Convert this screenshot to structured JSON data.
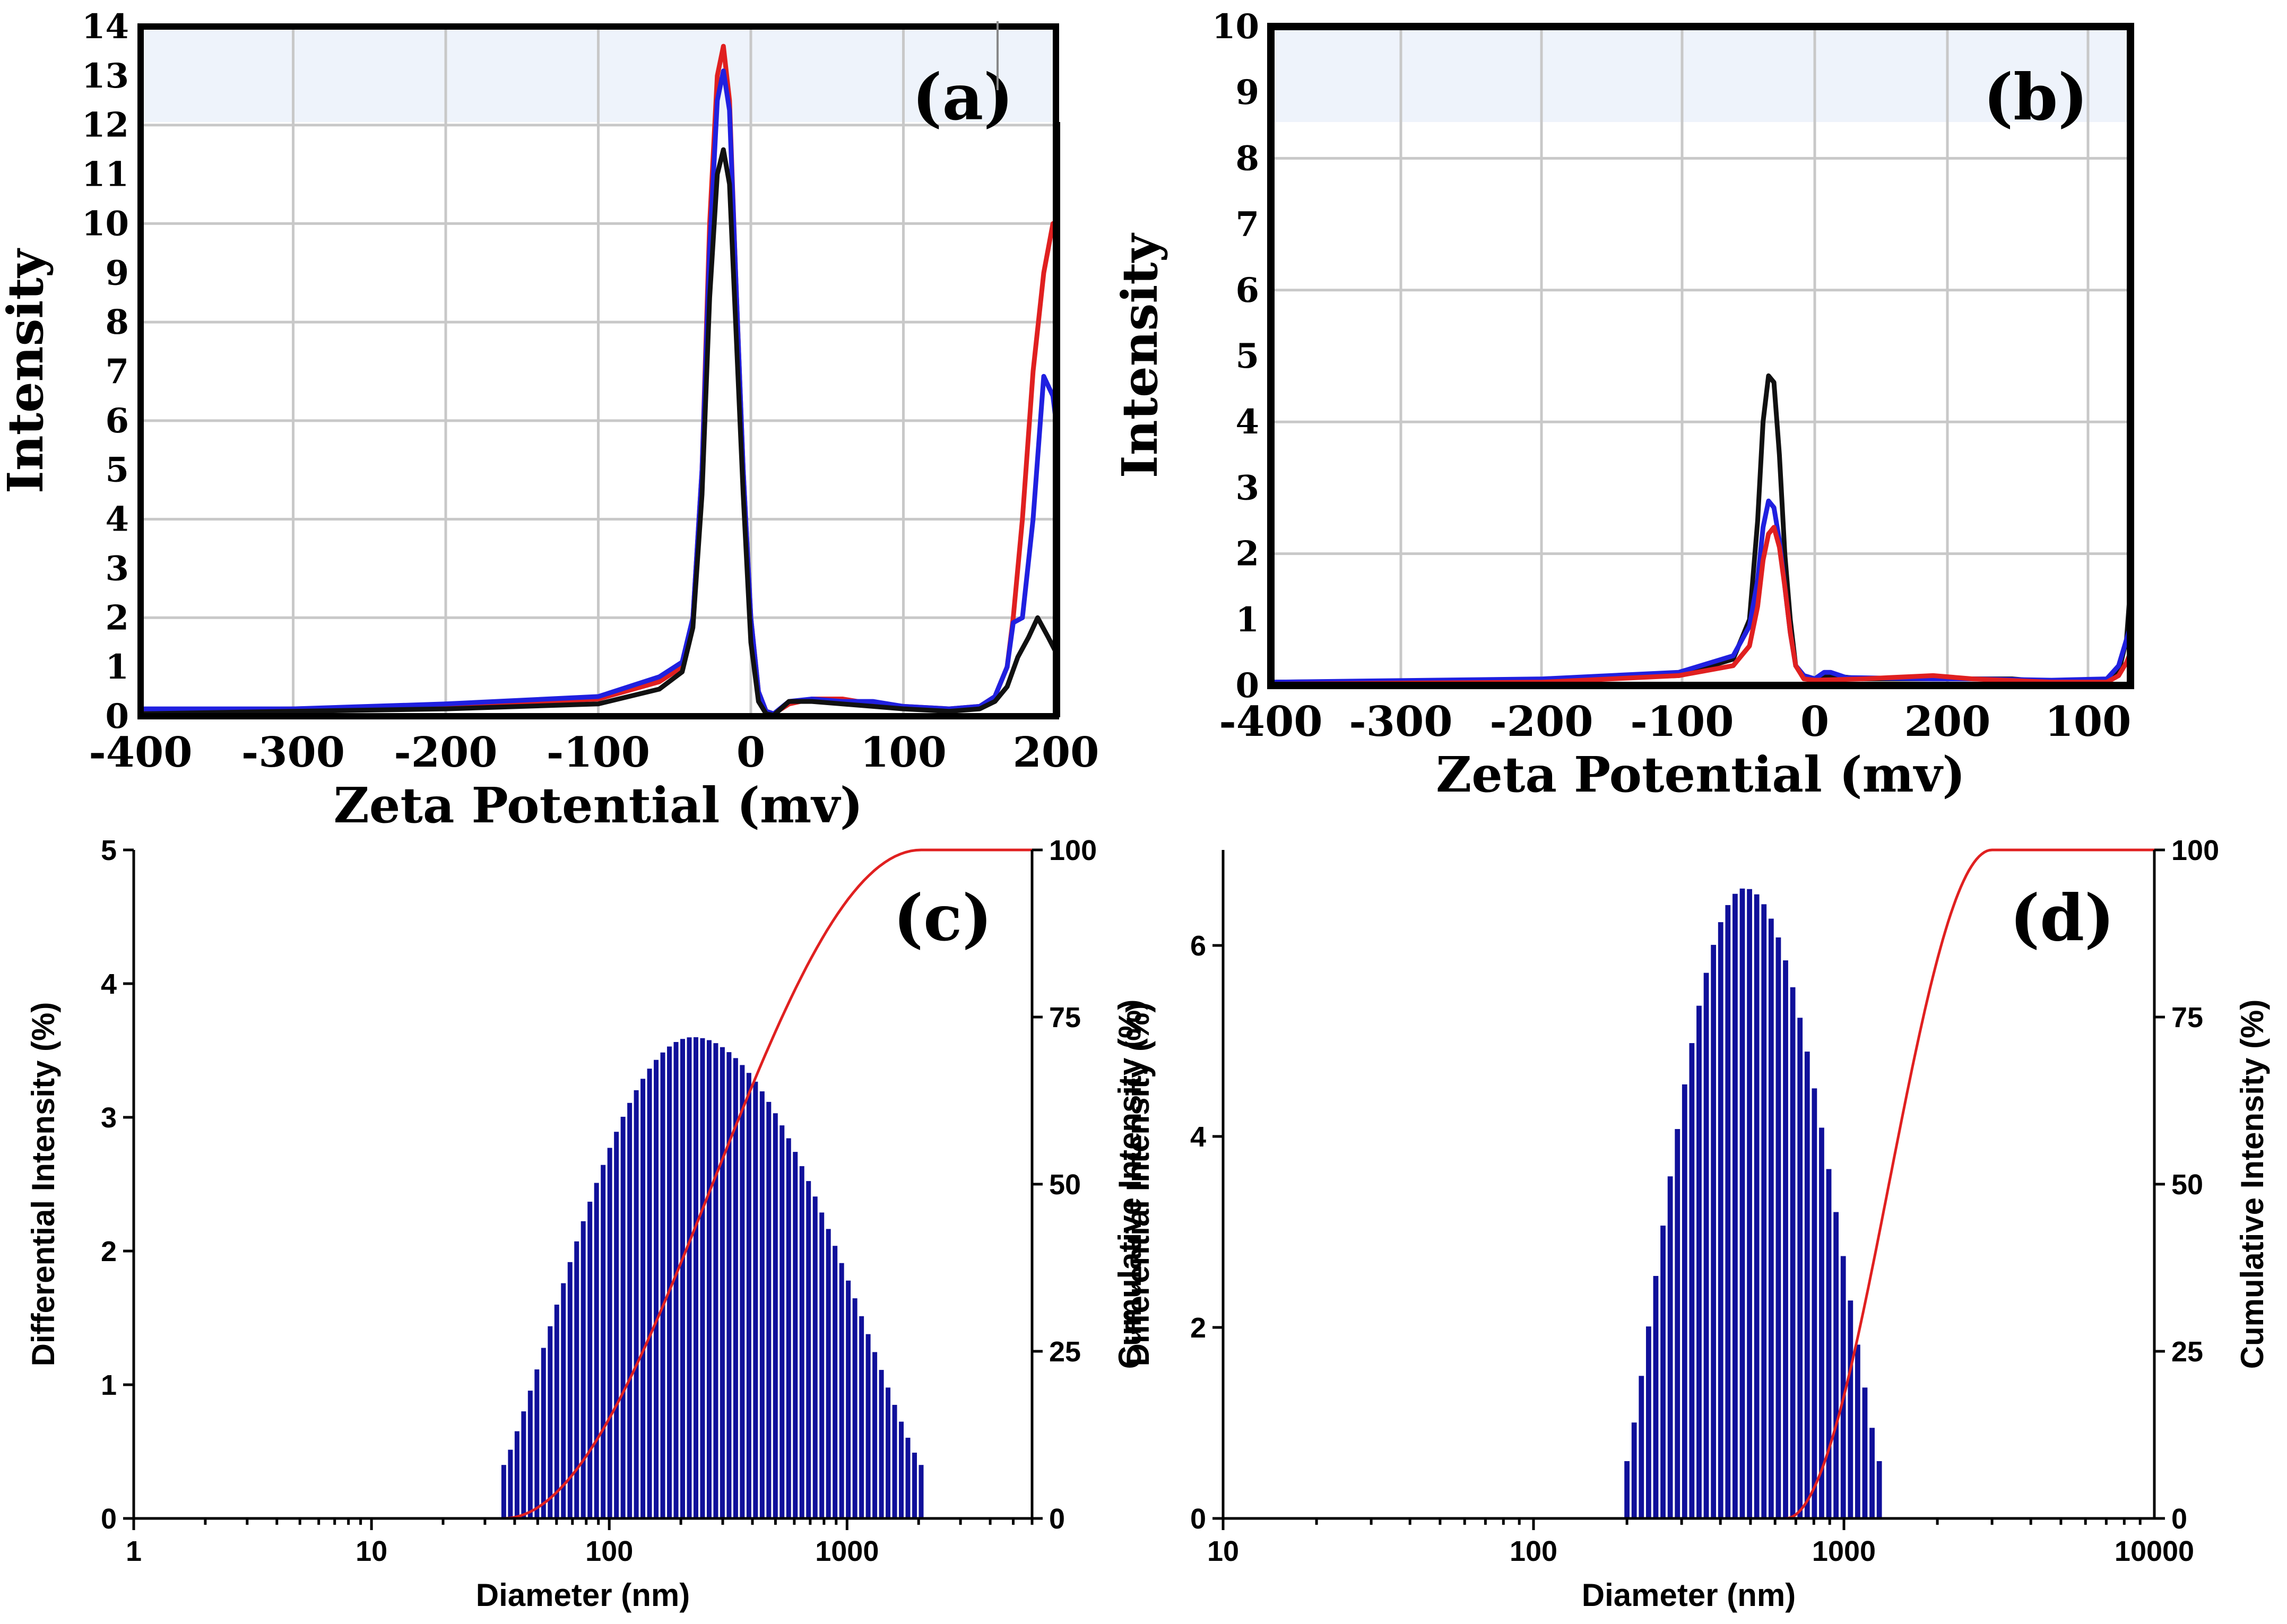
{
  "chart_data": [
    {
      "id": "a",
      "type": "line",
      "panel_label": "(a)",
      "xlabel": "Zeta Potential (mv)",
      "ylabel": "Intensity",
      "xlim": [
        -400,
        200
      ],
      "ylim": [
        0,
        14
      ],
      "x_tick_labels": [
        "-400",
        "-300",
        "-200",
        "-100",
        "0",
        "100",
        "200"
      ],
      "y_tick_labels": [
        "0",
        "1",
        "2",
        "3",
        "4",
        "5",
        "6",
        "7",
        "8",
        "9",
        "10",
        "11",
        "12",
        "13",
        "14"
      ],
      "grid": true,
      "series": [
        {
          "color": "#e02020",
          "points": [
            [
              -400,
              0.1
            ],
            [
              -300,
              0.15
            ],
            [
              -200,
              0.2
            ],
            [
              -100,
              0.35
            ],
            [
              -60,
              0.7
            ],
            [
              -45,
              1.0
            ],
            [
              -38,
              2.0
            ],
            [
              -32,
              5.0
            ],
            [
              -27,
              10.0
            ],
            [
              -22,
              13.0
            ],
            [
              -18,
              13.6
            ],
            [
              -14,
              12.5
            ],
            [
              -10,
              9.0
            ],
            [
              -5,
              5.0
            ],
            [
              0,
              2.0
            ],
            [
              5,
              0.5
            ],
            [
              10,
              0.1
            ],
            [
              15,
              0.05
            ],
            [
              25,
              0.25
            ],
            [
              40,
              0.35
            ],
            [
              60,
              0.35
            ],
            [
              80,
              0.25
            ],
            [
              100,
              0.2
            ],
            [
              130,
              0.15
            ],
            [
              150,
              0.2
            ],
            [
              160,
              0.4
            ],
            [
              168,
              1.0
            ],
            [
              172,
              2.0
            ],
            [
              178,
              4.0
            ],
            [
              185,
              7.0
            ],
            [
              192,
              9.0
            ],
            [
              198,
              10.0
            ],
            [
              200,
              9.8
            ]
          ]
        },
        {
          "color": "#2020e0",
          "points": [
            [
              -400,
              0.15
            ],
            [
              -300,
              0.15
            ],
            [
              -200,
              0.25
            ],
            [
              -100,
              0.4
            ],
            [
              -60,
              0.8
            ],
            [
              -45,
              1.1
            ],
            [
              -38,
              2.0
            ],
            [
              -32,
              5.0
            ],
            [
              -27,
              9.5
            ],
            [
              -22,
              12.5
            ],
            [
              -18,
              13.1
            ],
            [
              -14,
              12.3
            ],
            [
              -10,
              9.0
            ],
            [
              -5,
              5.0
            ],
            [
              0,
              2.0
            ],
            [
              5,
              0.5
            ],
            [
              10,
              0.1
            ],
            [
              15,
              0.05
            ],
            [
              25,
              0.3
            ],
            [
              40,
              0.35
            ],
            [
              60,
              0.3
            ],
            [
              80,
              0.3
            ],
            [
              100,
              0.2
            ],
            [
              130,
              0.15
            ],
            [
              150,
              0.2
            ],
            [
              160,
              0.4
            ],
            [
              168,
              1.0
            ],
            [
              172,
              1.9
            ],
            [
              178,
              2.0
            ],
            [
              185,
              4.0
            ],
            [
              192,
              6.9
            ],
            [
              198,
              6.5
            ],
            [
              200,
              6.0
            ]
          ]
        },
        {
          "color": "#111111",
          "points": [
            [
              -400,
              0.05
            ],
            [
              -300,
              0.1
            ],
            [
              -200,
              0.15
            ],
            [
              -100,
              0.25
            ],
            [
              -60,
              0.55
            ],
            [
              -45,
              0.9
            ],
            [
              -38,
              1.8
            ],
            [
              -32,
              4.5
            ],
            [
              -27,
              8.5
            ],
            [
              -22,
              11.0
            ],
            [
              -18,
              11.5
            ],
            [
              -14,
              10.8
            ],
            [
              -10,
              8.0
            ],
            [
              -5,
              4.5
            ],
            [
              0,
              1.5
            ],
            [
              5,
              0.3
            ],
            [
              10,
              0.05
            ],
            [
              15,
              0.02
            ],
            [
              25,
              0.3
            ],
            [
              40,
              0.3
            ],
            [
              60,
              0.25
            ],
            [
              80,
              0.2
            ],
            [
              100,
              0.15
            ],
            [
              130,
              0.1
            ],
            [
              150,
              0.15
            ],
            [
              160,
              0.3
            ],
            [
              168,
              0.6
            ],
            [
              175,
              1.2
            ],
            [
              182,
              1.6
            ],
            [
              188,
              2.0
            ],
            [
              195,
              1.6
            ],
            [
              200,
              1.3
            ]
          ]
        }
      ]
    },
    {
      "id": "b",
      "type": "line",
      "panel_label": "(b)",
      "xlabel": "Zeta Potential (mv)",
      "ylabel": "Intensity",
      "ylim": [
        0,
        10
      ],
      "x_tick_labels": [
        "-400",
        "-300",
        "-200",
        "-100",
        "0",
        "200",
        "100"
      ],
      "y_tick_labels": [
        "0",
        "1",
        "2",
        "3",
        "4",
        "5",
        "6",
        "7",
        "8",
        "9",
        "10"
      ],
      "grid": true,
      "series": [
        {
          "color": "#111111",
          "points": [
            [
              -400,
              0.05
            ],
            [
              -200,
              0.08
            ],
            [
              -100,
              0.15
            ],
            [
              -60,
              0.4
            ],
            [
              -48,
              1.0
            ],
            [
              -42,
              2.5
            ],
            [
              -38,
              4.0
            ],
            [
              -34,
              4.7
            ],
            [
              -30,
              4.6
            ],
            [
              -26,
              3.5
            ],
            [
              -22,
              2.0
            ],
            [
              -18,
              1.0
            ],
            [
              -14,
              0.3
            ],
            [
              -8,
              0.15
            ],
            [
              0,
              0.1
            ],
            [
              20,
              0.15
            ],
            [
              60,
              0.1
            ],
            [
              150,
              0.1
            ],
            [
              200,
              0.1
            ],
            [
              250,
              0.1
            ],
            [
              300,
              0.05
            ],
            [
              370,
              0.08
            ],
            [
              385,
              0.2
            ],
            [
              395,
              0.7
            ],
            [
              400,
              1.5
            ]
          ]
        },
        {
          "color": "#2020e0",
          "points": [
            [
              -400,
              0.05
            ],
            [
              -200,
              0.1
            ],
            [
              -100,
              0.2
            ],
            [
              -60,
              0.45
            ],
            [
              -48,
              0.9
            ],
            [
              -42,
              1.6
            ],
            [
              -38,
              2.4
            ],
            [
              -34,
              2.8
            ],
            [
              -30,
              2.7
            ],
            [
              -26,
              2.2
            ],
            [
              -22,
              1.5
            ],
            [
              -18,
              0.8
            ],
            [
              -14,
              0.3
            ],
            [
              -8,
              0.15
            ],
            [
              0,
              0.1
            ],
            [
              12,
              0.2
            ],
            [
              20,
              0.2
            ],
            [
              40,
              0.12
            ],
            [
              150,
              0.1
            ],
            [
              200,
              0.1
            ],
            [
              300,
              0.08
            ],
            [
              370,
              0.1
            ],
            [
              385,
              0.3
            ],
            [
              395,
              0.7
            ],
            [
              400,
              0.9
            ]
          ]
        },
        {
          "color": "#e02020",
          "points": [
            [
              -400,
              0.02
            ],
            [
              -200,
              0.05
            ],
            [
              -100,
              0.15
            ],
            [
              -60,
              0.3
            ],
            [
              -48,
              0.6
            ],
            [
              -42,
              1.2
            ],
            [
              -38,
              1.9
            ],
            [
              -34,
              2.3
            ],
            [
              -30,
              2.4
            ],
            [
              -26,
              2.1
            ],
            [
              -22,
              1.5
            ],
            [
              -18,
              0.8
            ],
            [
              -14,
              0.3
            ],
            [
              -8,
              0.1
            ],
            [
              0,
              0.08
            ],
            [
              60,
              0.1
            ],
            [
              150,
              0.15
            ],
            [
              200,
              0.1
            ],
            [
              300,
              0.05
            ],
            [
              370,
              0.05
            ],
            [
              385,
              0.15
            ],
            [
              395,
              0.35
            ],
            [
              400,
              0.5
            ]
          ]
        }
      ]
    },
    {
      "id": "c",
      "type": "bar",
      "panel_label": "(c)",
      "xlabel": "Diameter (nm)",
      "ylabel": "Differential Intensity (%)",
      "y2label": "Cumulative Intensity (%)",
      "x_scale": "log",
      "xlim": [
        1,
        6000
      ],
      "ylim": [
        0,
        5
      ],
      "y2lim": [
        0,
        100
      ],
      "x_tick_labels": [
        "1",
        "10",
        "100",
        "1000"
      ],
      "y_tick_labels": [
        "0",
        "1",
        "2",
        "3",
        "4",
        "5"
      ],
      "y2_tick_labels": [
        "0",
        "25",
        "50",
        "75",
        "100"
      ],
      "bar_color": "#10109a",
      "curve_color": "#e02020",
      "bars": {
        "start_nm": 36,
        "end_nm": 2050,
        "peak_nm": 225,
        "peak_value": 3.6,
        "edge_left": 0.4,
        "edge_right": 0.4
      },
      "cumulative": {
        "start_nm": 36,
        "end_nm": 2050
      }
    },
    {
      "id": "d",
      "type": "bar",
      "panel_label": "(d)",
      "xlabel": "Diameter (nm)",
      "ylabel": "Differential Intensity (%)",
      "y2label": "Cumulative Intensity (%)",
      "x_scale": "log",
      "xlim": [
        10,
        10000
      ],
      "ylim": [
        0,
        7
      ],
      "y2lim": [
        0,
        100
      ],
      "x_tick_labels": [
        "10",
        "100",
        "1000",
        "10000"
      ],
      "y_tick_labels": [
        "0",
        "2",
        "4",
        "6"
      ],
      "y2_tick_labels": [
        "0",
        "25",
        "50",
        "75",
        "100"
      ],
      "bar_color": "#10109a",
      "curve_color": "#e02020",
      "bars": {
        "start_nm": 200,
        "end_nm": 1300,
        "peak_nm": 480,
        "peak_value": 6.6,
        "edge_left": 0.6,
        "edge_right": 0.6
      },
      "cumulative": {
        "start_nm": 650,
        "end_nm": 3000
      }
    }
  ]
}
